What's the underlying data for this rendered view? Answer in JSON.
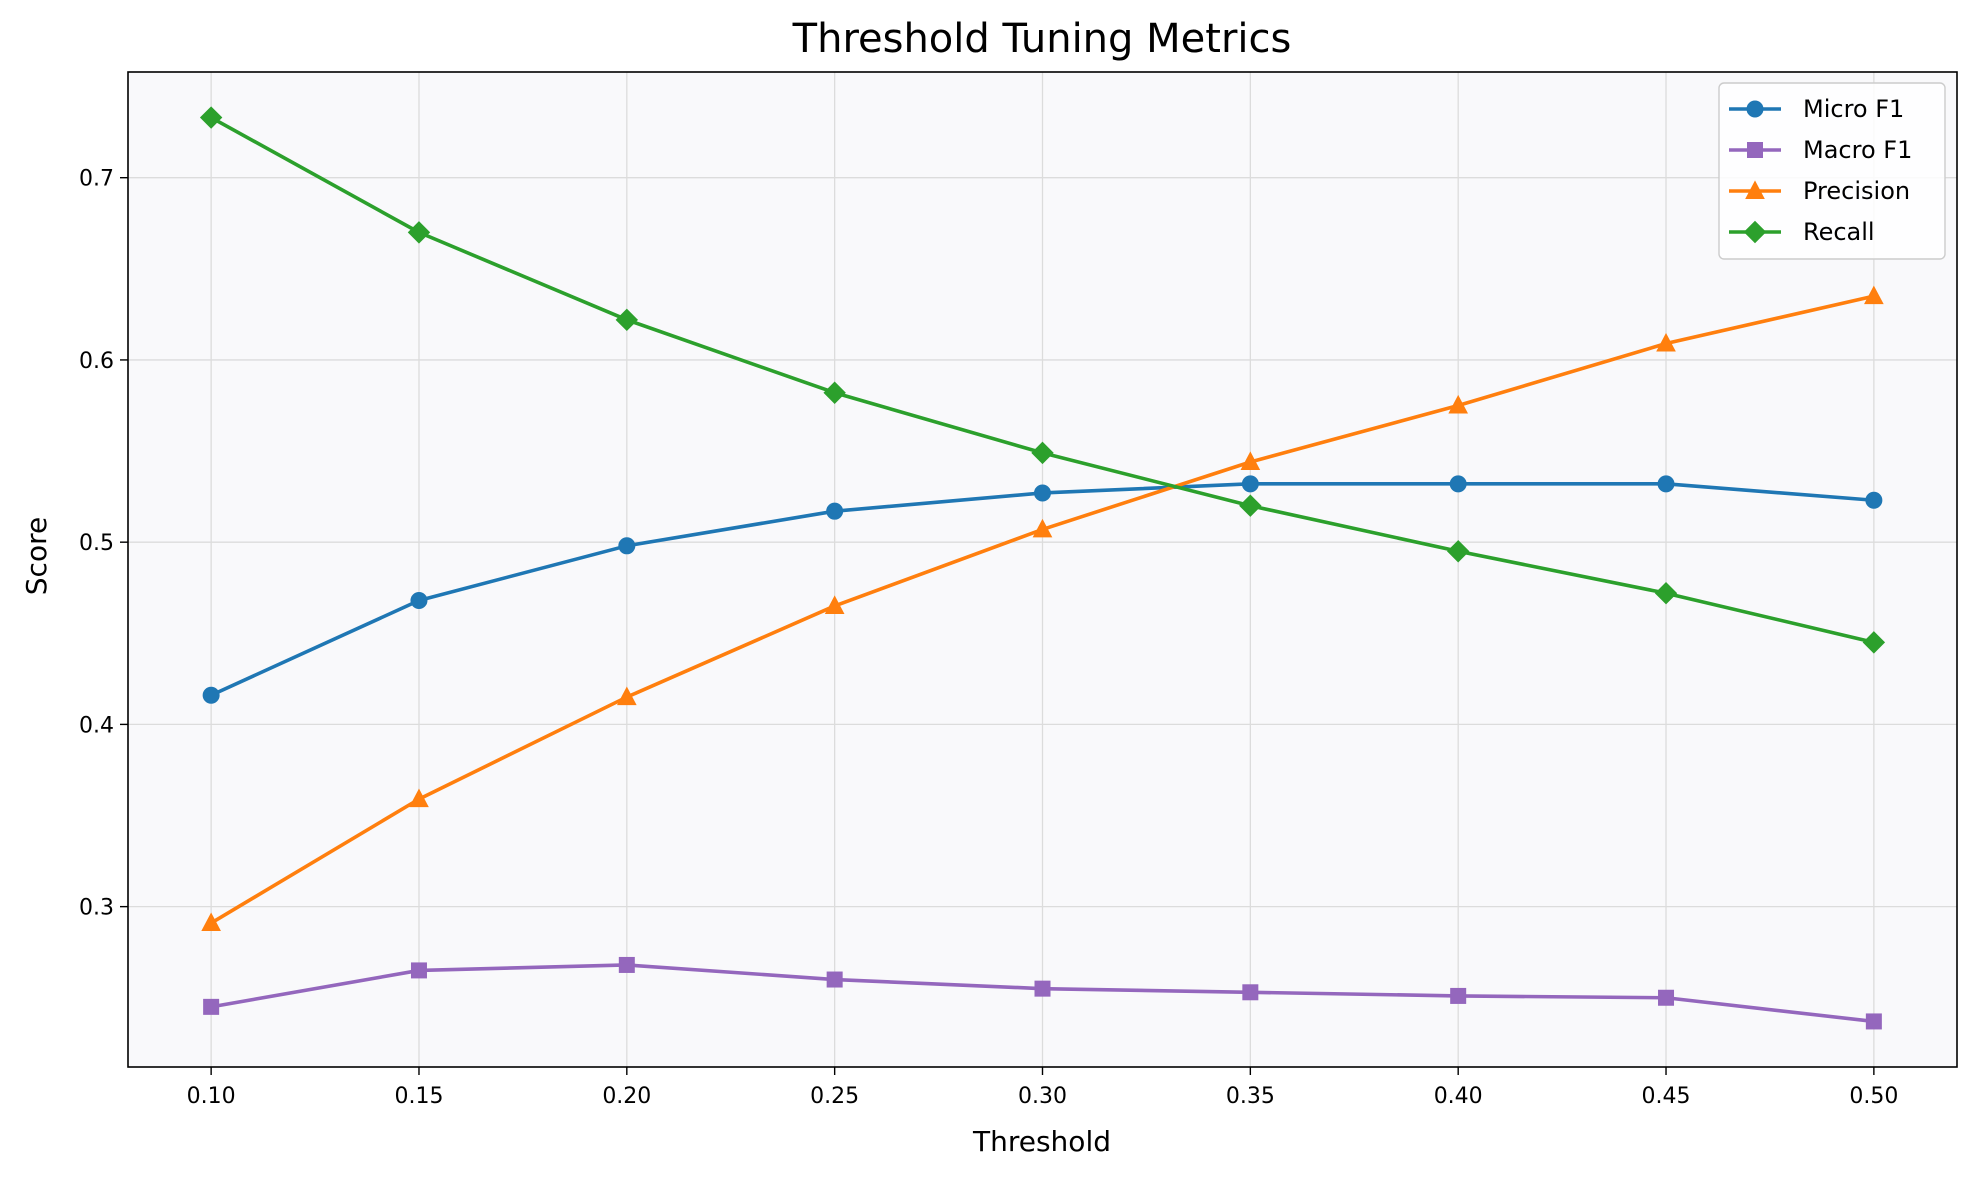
{
  "chart_data": {
    "type": "line",
    "title": "Threshold Tuning Metrics",
    "xlabel": "Threshold",
    "ylabel": "Score",
    "x": [
      0.1,
      0.15,
      0.2,
      0.25,
      0.3,
      0.35,
      0.4,
      0.45,
      0.5
    ],
    "x_tick_labels": [
      "0.10",
      "0.15",
      "0.20",
      "0.25",
      "0.30",
      "0.35",
      "0.40",
      "0.45",
      "0.50"
    ],
    "y_ticks": [
      0.3,
      0.4,
      0.5,
      0.6,
      0.7
    ],
    "y_tick_labels": [
      "0.3",
      "0.4",
      "0.5",
      "0.6",
      "0.7"
    ],
    "xlim": [
      0.08,
      0.52
    ],
    "ylim": [
      0.212,
      0.758
    ],
    "grid": true,
    "legend_position": "top-right",
    "series": [
      {
        "name": "Micro F1",
        "color": "#1f77b4",
        "marker": "circle",
        "values": [
          0.416,
          0.468,
          0.498,
          0.517,
          0.527,
          0.532,
          0.532,
          0.532,
          0.523
        ]
      },
      {
        "name": "Macro F1",
        "color": "#9467bd",
        "marker": "square",
        "values": [
          0.245,
          0.265,
          0.268,
          0.26,
          0.255,
          0.253,
          0.251,
          0.25,
          0.237
        ]
      },
      {
        "name": "Precision",
        "color": "#ff7f0e",
        "marker": "triangle",
        "values": [
          0.291,
          0.359,
          0.415,
          0.465,
          0.507,
          0.544,
          0.575,
          0.609,
          0.635
        ]
      },
      {
        "name": "Recall",
        "color": "#2ca02c",
        "marker": "diamond",
        "values": [
          0.733,
          0.67,
          0.622,
          0.582,
          0.549,
          0.52,
          0.495,
          0.472,
          0.445
        ]
      }
    ]
  }
}
